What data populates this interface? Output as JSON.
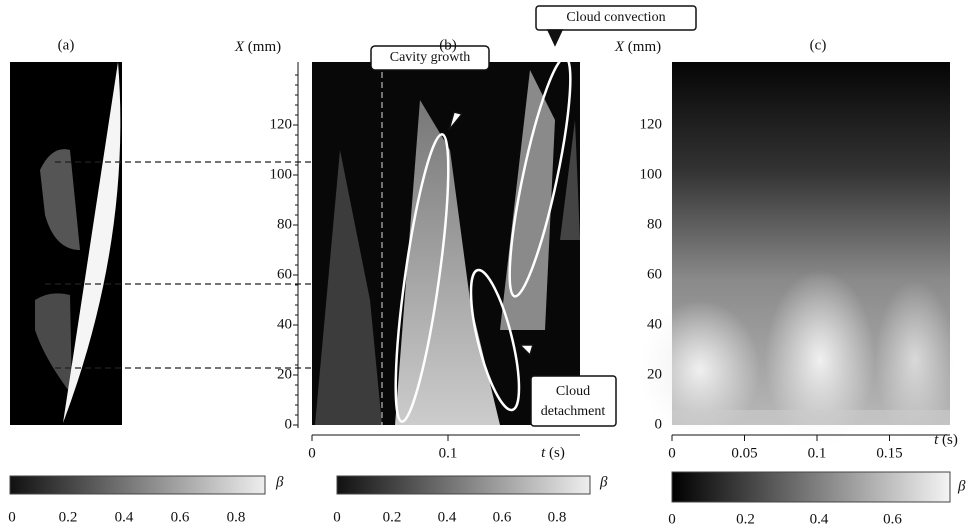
{
  "panels": [
    {
      "label": "(a)",
      "colorbar": {
        "ticks": [
          "0",
          "0.2",
          "0.4",
          "0.6",
          "0.8"
        ],
        "symbol": "β"
      }
    },
    {
      "label": "(b)",
      "y_axis": {
        "label": "X",
        "unit": "(mm)",
        "ticks": [
          "0",
          "20",
          "40",
          "60",
          "80",
          "100",
          "120"
        ]
      },
      "x_axis": {
        "label": "t",
        "unit": "(s)",
        "ticks": [
          "0",
          "0.1"
        ]
      },
      "annotations": [
        "Cavity growth",
        "Cloud convection",
        "Cloud",
        "detachment"
      ],
      "colorbar": {
        "ticks": [
          "0",
          "0.2",
          "0.4",
          "0.6",
          "0.8"
        ],
        "symbol": "β"
      }
    },
    {
      "label": "(c)",
      "y_axis": {
        "label": "X",
        "unit": "(mm)",
        "ticks": [
          "0",
          "20",
          "40",
          "60",
          "80",
          "100",
          "120"
        ]
      },
      "x_axis": {
        "label": "t",
        "unit": "(s)",
        "ticks": [
          "0",
          "0.05",
          "0.1",
          "0.15"
        ]
      },
      "colorbar": {
        "ticks": [
          "0",
          "0.2",
          "0.4",
          "0.6"
        ],
        "symbol": "β"
      }
    }
  ]
}
